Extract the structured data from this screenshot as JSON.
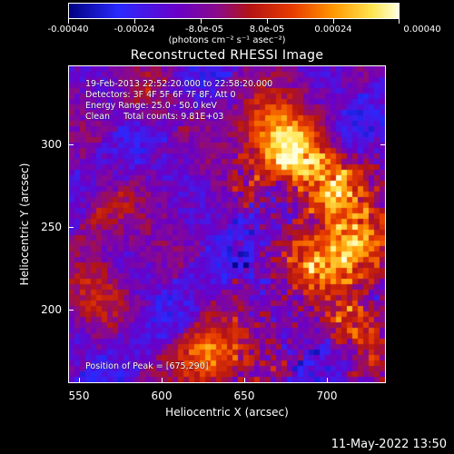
{
  "colorbar": {
    "tick_labels": [
      "-0.00040",
      "-0.00024",
      "-8.0e-05",
      "8.0e-05",
      "0.00024",
      "0.00040"
    ],
    "units": "(photons cm⁻² s⁻¹ asec⁻²)",
    "range": [
      -0.0004,
      0.0004
    ],
    "colormap": [
      "#000080",
      "#2a2aff",
      "#6a00c8",
      "#8a0a8a",
      "#b41414",
      "#e83c00",
      "#ff9600",
      "#ffe650",
      "#ffffdc"
    ]
  },
  "title": "Reconstructed RHESSI Image",
  "info": {
    "line1": "19-Feb-2013 22:52:20.000 to 22:58:20.000",
    "line2": "Detectors: 3F 4F 5F 6F 7F 8F, Att 0",
    "line3": "Energy Range: 25.0 - 50.0 keV",
    "line4": "Clean     Total counts: 9.81E+03",
    "peak": "Position of Peak = [675,290]"
  },
  "axes": {
    "xlabel": "Heliocentric X (arcsec)",
    "ylabel": "Heliocentric Y (arcsec)",
    "xticks": [
      "550",
      "600",
      "650",
      "700"
    ],
    "yticks": [
      "300",
      "250",
      "200"
    ],
    "xlim": [
      543,
      735
    ],
    "ylim": [
      150,
      342
    ]
  },
  "timestamp": "11-May-2022 13:50",
  "chart_data": {
    "type": "heatmap",
    "title": "Reconstructed RHESSI Image",
    "xlabel": "Heliocentric X (arcsec)",
    "ylabel": "Heliocentric Y (arcsec)",
    "xlim": [
      543,
      735
    ],
    "ylim": [
      150,
      342
    ],
    "value_range": [
      -0.0004,
      0.0004
    ],
    "peak": {
      "x": 675,
      "y": 290
    },
    "sources": [
      {
        "x": 676,
        "y": 290,
        "amp": 1.0
      },
      {
        "x": 700,
        "y": 270,
        "amp": 0.75
      },
      {
        "x": 715,
        "y": 235,
        "amp": 0.7
      },
      {
        "x": 695,
        "y": 222,
        "amp": 0.55
      },
      {
        "x": 625,
        "y": 168,
        "amp": 0.75
      },
      {
        "x": 660,
        "y": 312,
        "amp": 0.45
      },
      {
        "x": 560,
        "y": 255,
        "amp": 0.35
      },
      {
        "x": 560,
        "y": 205,
        "amp": 0.3
      },
      {
        "x": 720,
        "y": 185,
        "amp": 0.55
      },
      {
        "x": 590,
        "y": 320,
        "amp": 0.3
      }
    ]
  }
}
